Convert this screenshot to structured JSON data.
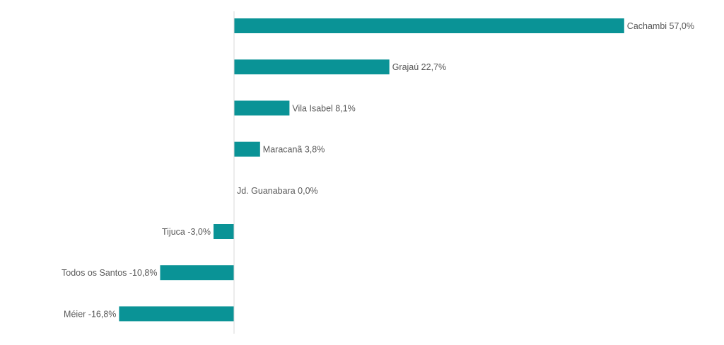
{
  "chart_data": {
    "type": "bar",
    "orientation": "horizontal",
    "title": "",
    "xlabel": "",
    "ylabel": "",
    "grid": false,
    "bar_color": "#0a9396",
    "axis_color": "#d9d9d9",
    "label_color": "#595959",
    "categories": [
      "Cachambi",
      "Grajaú",
      "Vila Isabel",
      "Maracanã",
      "Jd. Guanabara",
      "Tijuca",
      "Todos os Santos",
      "Méier"
    ],
    "values": [
      57.0,
      22.7,
      8.1,
      3.8,
      0.0,
      -3.0,
      -10.8,
      -16.8
    ],
    "labels": [
      "Cachambi 57,0%",
      "Grajaú 22,7%",
      "Vila Isabel 8,1%",
      "Maracanã 3,8%",
      "Jd. Guanabara 0,0%",
      "Tijuca -3,0%",
      "Todos os Santos -10,8%",
      "Méier -16,8%"
    ],
    "unit": "%"
  }
}
